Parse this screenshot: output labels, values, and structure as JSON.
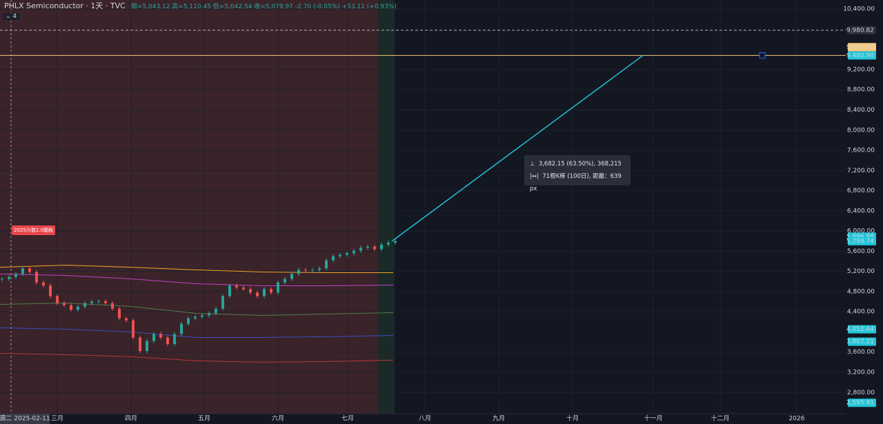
{
  "header": {
    "title": "PHLX Semiconductor · 1天 · TVC",
    "ohlc": "開=5,043.12 高=5,110.45 低=5,042.54 收=5,079.97 -2.70 (-0.05%) +53.11 (+0.93%)",
    "pane_count": "4"
  },
  "chart_data": {
    "type": "candlestick",
    "closes": [
      5050,
      5090,
      5150,
      5260,
      5190,
      4980,
      4920,
      4710,
      4570,
      4530,
      4440,
      4500,
      4570,
      4600,
      4610,
      4570,
      4460,
      4270,
      4230,
      3890,
      3620,
      3820,
      3960,
      3890,
      3760,
      3960,
      4160,
      4270,
      4300,
      4330,
      4370,
      4460,
      4710,
      4920,
      4880,
      4850,
      4780,
      4710,
      4850,
      4780,
      4980,
      5050,
      5150,
      5230,
      5220,
      5230,
      5260,
      5420,
      5500,
      5530,
      5560,
      5610,
      5670,
      5690,
      5640,
      5730,
      5770,
      5800
    ],
    "moving_averages": [
      {
        "color": "#f5a623",
        "values": [
          5283,
          5324,
          5283,
          5229,
          5188,
          5174,
          5174
        ]
      },
      {
        "color": "#c042c8",
        "values": [
          5147,
          5120,
          5051,
          4956,
          4915,
          4915,
          4929
        ]
      },
      {
        "color": "#4f7f4a",
        "values": [
          4546,
          4574,
          4505,
          4369,
          4328,
          4355,
          4383
        ]
      },
      {
        "color": "#3b4fc4",
        "values": [
          4082,
          4055,
          4000,
          3891,
          3891,
          3905,
          3932
        ]
      },
      {
        "color": "#b23a3a",
        "values": [
          3577,
          3550,
          3509,
          3427,
          3400,
          3413,
          3441
        ]
      }
    ],
    "ylim": [
      2380,
      10580
    ],
    "yticks": [
      {
        "value": 10400,
        "label": "10,400.00"
      },
      {
        "value": 9200,
        "label": "9,200.00"
      },
      {
        "value": 8800,
        "label": "8,800.00"
      },
      {
        "value": 8400,
        "label": "8,400.00"
      },
      {
        "value": 8000,
        "label": "8,000.00"
      },
      {
        "value": 7600,
        "label": "7,600.00"
      },
      {
        "value": 7200,
        "label": "7,200.00"
      },
      {
        "value": 6800,
        "label": "6,800.00"
      },
      {
        "value": 6400,
        "label": "6,400.00"
      },
      {
        "value": 6000,
        "label": "6,000.00"
      },
      {
        "value": 5600,
        "label": "5,600.00"
      },
      {
        "value": 5200,
        "label": "5,200.00"
      },
      {
        "value": 4800,
        "label": "4,800.00"
      },
      {
        "value": 4400,
        "label": "4,400.00"
      },
      {
        "value": 3600,
        "label": "3,600.00"
      },
      {
        "value": 3200,
        "label": "3,200.00"
      },
      {
        "value": 2800,
        "label": "2,800.00"
      }
    ],
    "months": [
      "三月",
      "四月",
      "五月",
      "六月",
      "七月",
      "八月",
      "九月",
      "十月",
      "十一月",
      "十二月",
      "2026"
    ],
    "crosshair_date": "週二 2025-02-11",
    "price_labels": [
      {
        "value": 9980.82,
        "label": "9,980.82",
        "color": "#2a2e39"
      },
      {
        "value": 9480.9,
        "label": "9,480.90",
        "color": "#f7c97e"
      },
      {
        "value": 9480.9,
        "label": "9,480.90",
        "color": "#22c5d8"
      },
      {
        "value": 5886.95,
        "label": "5,886.95",
        "color": "#22c5d8"
      },
      {
        "value": 5798.74,
        "label": "5,798.74",
        "color": "#22c5d8"
      },
      {
        "value": 4052.64,
        "label": "4,052.64",
        "color": "#22c5d8"
      },
      {
        "value": 3807.21,
        "label": "3,807.21",
        "color": "#22c5d8"
      },
      {
        "value": 2595.91,
        "label": "2,595.91",
        "color": "#22c5d8"
      }
    ],
    "horizontal_line": 9480.9,
    "dashed_line": 9980.82,
    "measure": {
      "from": 5798.74,
      "to": 9480.9
    },
    "event_badge": "2025川普2.0關稅",
    "tooltip": [
      "3,682.15 (63.50%), 368,215",
      "71根K棒 (100日), 距離：639 px"
    ]
  }
}
